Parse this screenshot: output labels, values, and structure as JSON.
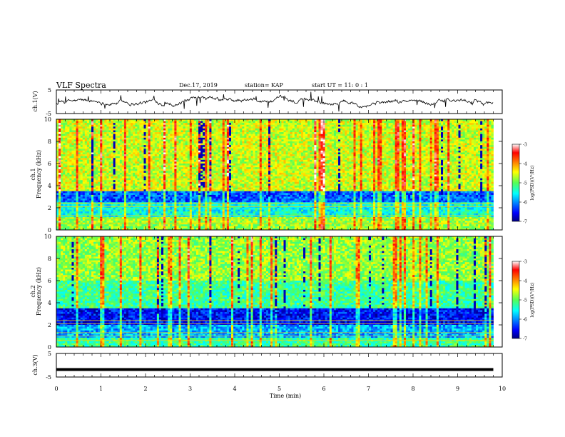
{
  "header": {
    "title": "VLF Spectra",
    "date": "Dec.17, 2019",
    "station": "station= KAP",
    "start_ut": "start  UT =   11: 0  : 1"
  },
  "chart_data": [
    {
      "type": "line",
      "panel": "ch1-waveform",
      "ylabel": "ch.1(V)",
      "ylim": [
        -5,
        5
      ],
      "yticks": [
        "5",
        "-5"
      ],
      "series": [
        {
          "description_values_approx": "noisy signal oscillating mostly between -3 and 2"
        }
      ]
    },
    {
      "type": "heatmap",
      "panel": "ch1-spectrogram",
      "ylabel": "ch.1\nFrequency (kHz)",
      "ylim": [
        0,
        10
      ],
      "yticks": [
        "0",
        "2",
        "4",
        "6",
        "8",
        "10"
      ],
      "colorbar": {
        "label": "log(PSD)(V²/Hz)",
        "range": [
          -7,
          -3
        ],
        "ticks": [
          "-3",
          "-4",
          "-5",
          "-6",
          "-7"
        ]
      }
    },
    {
      "type": "heatmap",
      "panel": "ch2-spectrogram",
      "ylabel": "ch.2\nFrequency (kHz)",
      "ylim": [
        0,
        10
      ],
      "yticks": [
        "0",
        "2",
        "4",
        "6",
        "8",
        "10"
      ],
      "colorbar": {
        "label": "log(PSD)(V²/Hz)",
        "range": [
          -7,
          -3
        ],
        "ticks": [
          "-3",
          "-4",
          "-5",
          "-6",
          "-7"
        ]
      }
    },
    {
      "type": "line",
      "panel": "ch3-waveform",
      "ylabel": "ch.3(V)",
      "ylim": [
        -5,
        5
      ],
      "yticks": [
        "5",
        "-5"
      ],
      "series": [
        {
          "x": [
            0,
            9.8
          ],
          "y": [
            -1.8,
            -1.8
          ]
        }
      ]
    }
  ],
  "xaxis": {
    "label": "Time (min)",
    "range": [
      0,
      10
    ],
    "ticks": [
      "0",
      "1",
      "2",
      "3",
      "4",
      "5",
      "6",
      "7",
      "8",
      "9",
      "10"
    ],
    "data_end": 9.8
  },
  "colors": {
    "frame": "#000000",
    "background": "#ffffff"
  }
}
